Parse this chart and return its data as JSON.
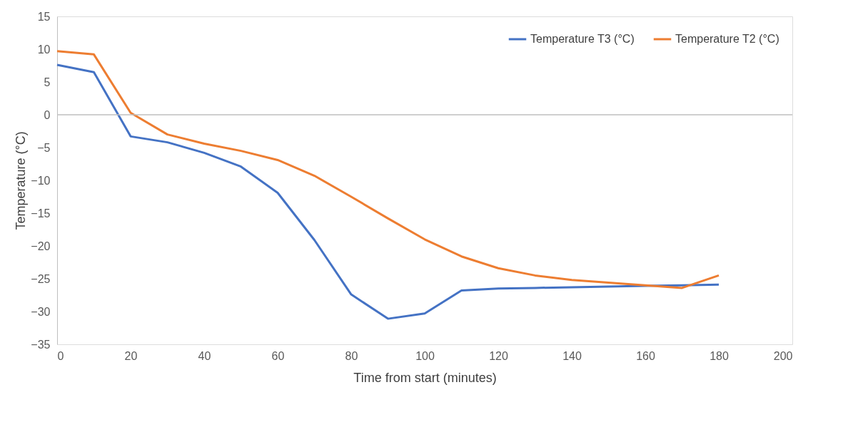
{
  "chart_data": {
    "type": "line",
    "xlabel": "Time from start (minutes)",
    "ylabel": "Temperature (°C)",
    "x": [
      0,
      10,
      20,
      30,
      40,
      50,
      60,
      70,
      80,
      90,
      100,
      110,
      120,
      130,
      140,
      150,
      160,
      170,
      180
    ],
    "series": [
      {
        "name": "Temperature T3 (°C)",
        "color": "#4472c4",
        "values": [
          7.6,
          6.5,
          -3.3,
          -4.2,
          -5.8,
          -7.9,
          -11.9,
          -19.1,
          -27.4,
          -31.1,
          -30.3,
          -26.8,
          -26.5,
          -26.4,
          -26.3,
          -26.2,
          -26.1,
          -26.0,
          -25.9
        ]
      },
      {
        "name": "Temperature T2 (°C)",
        "color": "#ed7d31",
        "values": [
          9.7,
          9.2,
          0.3,
          -3.0,
          -4.4,
          -5.5,
          -6.9,
          -9.3,
          -12.5,
          -15.8,
          -19.0,
          -21.6,
          -23.4,
          -24.5,
          -25.2,
          -25.6,
          -26.0,
          -26.4,
          -24.5
        ]
      }
    ],
    "xlim": [
      0,
      200
    ],
    "xticks": [
      0,
      20,
      40,
      60,
      80,
      100,
      120,
      140,
      160,
      180,
      200
    ],
    "ylim": [
      -35,
      15
    ],
    "yticks": [
      -35,
      -30,
      -25,
      -20,
      -15,
      -10,
      -5,
      0,
      5,
      10,
      15
    ],
    "ref_lines": [
      {
        "axis": "y",
        "value": 0,
        "color": "#bfbfbf"
      }
    ],
    "grid": false,
    "legend": "top right",
    "marker": "none",
    "line_style": "solid"
  }
}
